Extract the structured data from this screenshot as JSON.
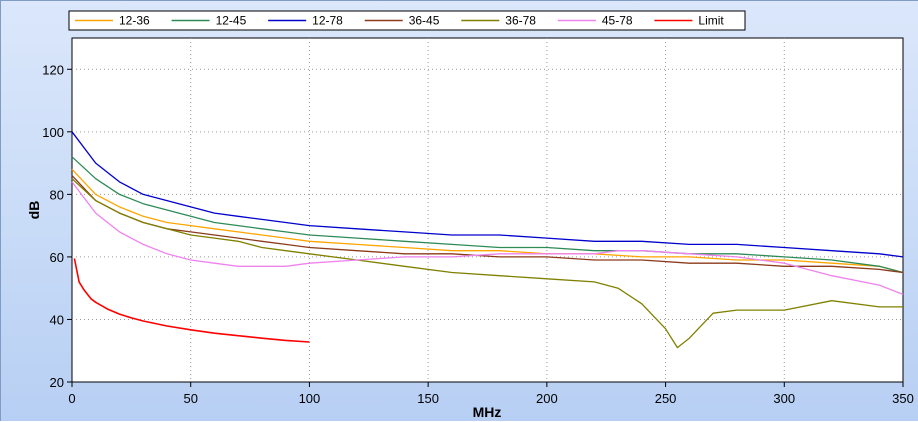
{
  "chart_data": {
    "type": "line",
    "xlabel": "MHz",
    "ylabel": "dB",
    "xlim": [
      0,
      350
    ],
    "ylim": [
      20,
      130
    ],
    "x_ticks": [
      0,
      50,
      100,
      150,
      200,
      250,
      300,
      350
    ],
    "y_ticks": [
      20,
      40,
      60,
      80,
      100,
      120
    ],
    "grid": true,
    "legend_position": "top",
    "series": [
      {
        "name": "12-36",
        "color": "#ffa500",
        "values": [
          [
            0,
            88
          ],
          [
            10,
            80
          ],
          [
            20,
            76
          ],
          [
            30,
            73
          ],
          [
            40,
            71
          ],
          [
            50,
            70
          ],
          [
            60,
            69
          ],
          [
            70,
            68
          ],
          [
            80,
            67
          ],
          [
            90,
            66
          ],
          [
            100,
            65
          ],
          [
            120,
            64
          ],
          [
            140,
            63
          ],
          [
            160,
            62
          ],
          [
            180,
            62
          ],
          [
            200,
            61
          ],
          [
            220,
            61
          ],
          [
            240,
            60
          ],
          [
            260,
            60
          ],
          [
            280,
            59
          ],
          [
            300,
            59
          ],
          [
            320,
            58
          ],
          [
            340,
            57
          ],
          [
            350,
            55
          ]
        ]
      },
      {
        "name": "12-45",
        "color": "#2e8b57",
        "values": [
          [
            0,
            92
          ],
          [
            10,
            85
          ],
          [
            20,
            80
          ],
          [
            30,
            77
          ],
          [
            40,
            75
          ],
          [
            50,
            73
          ],
          [
            60,
            71
          ],
          [
            70,
            70
          ],
          [
            80,
            69
          ],
          [
            90,
            68
          ],
          [
            100,
            67
          ],
          [
            120,
            66
          ],
          [
            140,
            65
          ],
          [
            160,
            64
          ],
          [
            180,
            63
          ],
          [
            200,
            63
          ],
          [
            220,
            62
          ],
          [
            240,
            62
          ],
          [
            260,
            61
          ],
          [
            280,
            61
          ],
          [
            300,
            60
          ],
          [
            320,
            59
          ],
          [
            340,
            57
          ],
          [
            350,
            55
          ]
        ]
      },
      {
        "name": "12-78",
        "color": "#0000cd",
        "values": [
          [
            0,
            100
          ],
          [
            10,
            90
          ],
          [
            20,
            84
          ],
          [
            30,
            80
          ],
          [
            40,
            78
          ],
          [
            50,
            76
          ],
          [
            60,
            74
          ],
          [
            70,
            73
          ],
          [
            80,
            72
          ],
          [
            90,
            71
          ],
          [
            100,
            70
          ],
          [
            120,
            69
          ],
          [
            140,
            68
          ],
          [
            160,
            67
          ],
          [
            180,
            67
          ],
          [
            200,
            66
          ],
          [
            220,
            65
          ],
          [
            240,
            65
          ],
          [
            260,
            64
          ],
          [
            280,
            64
          ],
          [
            300,
            63
          ],
          [
            320,
            62
          ],
          [
            340,
            61
          ],
          [
            350,
            60
          ]
        ]
      },
      {
        "name": "36-45",
        "color": "#8b3a1a",
        "values": [
          [
            0,
            86
          ],
          [
            10,
            78
          ],
          [
            20,
            74
          ],
          [
            30,
            71
          ],
          [
            40,
            69
          ],
          [
            50,
            68
          ],
          [
            60,
            67
          ],
          [
            70,
            66
          ],
          [
            80,
            65
          ],
          [
            90,
            64
          ],
          [
            100,
            63
          ],
          [
            120,
            62
          ],
          [
            140,
            61
          ],
          [
            160,
            61
          ],
          [
            180,
            60
          ],
          [
            200,
            60
          ],
          [
            220,
            59
          ],
          [
            240,
            59
          ],
          [
            260,
            58
          ],
          [
            280,
            58
          ],
          [
            300,
            57
          ],
          [
            320,
            57
          ],
          [
            340,
            56
          ],
          [
            350,
            55
          ]
        ]
      },
      {
        "name": "36-78",
        "color": "#808000",
        "values": [
          [
            0,
            85
          ],
          [
            10,
            78
          ],
          [
            20,
            74
          ],
          [
            30,
            71
          ],
          [
            40,
            69
          ],
          [
            50,
            67
          ],
          [
            60,
            66
          ],
          [
            70,
            65
          ],
          [
            80,
            63
          ],
          [
            90,
            62
          ],
          [
            100,
            61
          ],
          [
            120,
            59
          ],
          [
            140,
            57
          ],
          [
            160,
            55
          ],
          [
            180,
            54
          ],
          [
            200,
            53
          ],
          [
            220,
            52
          ],
          [
            230,
            50
          ],
          [
            240,
            45
          ],
          [
            250,
            37
          ],
          [
            255,
            31
          ],
          [
            260,
            34
          ],
          [
            270,
            42
          ],
          [
            280,
            43
          ],
          [
            300,
            43
          ],
          [
            320,
            46
          ],
          [
            340,
            44
          ],
          [
            350,
            44
          ]
        ]
      },
      {
        "name": "45-78",
        "color": "#ee82ee",
        "values": [
          [
            0,
            84
          ],
          [
            10,
            74
          ],
          [
            20,
            68
          ],
          [
            30,
            64
          ],
          [
            40,
            61
          ],
          [
            50,
            59
          ],
          [
            60,
            58
          ],
          [
            70,
            57
          ],
          [
            80,
            57
          ],
          [
            90,
            57
          ],
          [
            100,
            58
          ],
          [
            120,
            59
          ],
          [
            140,
            60
          ],
          [
            160,
            60
          ],
          [
            180,
            61
          ],
          [
            200,
            61
          ],
          [
            220,
            61
          ],
          [
            230,
            62
          ],
          [
            240,
            62
          ],
          [
            260,
            61
          ],
          [
            280,
            60
          ],
          [
            300,
            58
          ],
          [
            320,
            54
          ],
          [
            340,
            51
          ],
          [
            350,
            48
          ]
        ]
      },
      {
        "name": "Limit",
        "color": "#ff0000",
        "values": [
          [
            1,
            59.5
          ],
          [
            3,
            52
          ],
          [
            5,
            49.5
          ],
          [
            8,
            46.6
          ],
          [
            10,
            45.5
          ],
          [
            15,
            43.3
          ],
          [
            20,
            41.7
          ],
          [
            25,
            40.5
          ],
          [
            30,
            39.5
          ],
          [
            40,
            37.9
          ],
          [
            50,
            36.7
          ],
          [
            60,
            35.6
          ],
          [
            70,
            34.8
          ],
          [
            80,
            34
          ],
          [
            90,
            33.3
          ],
          [
            100,
            32.8
          ]
        ]
      }
    ]
  }
}
